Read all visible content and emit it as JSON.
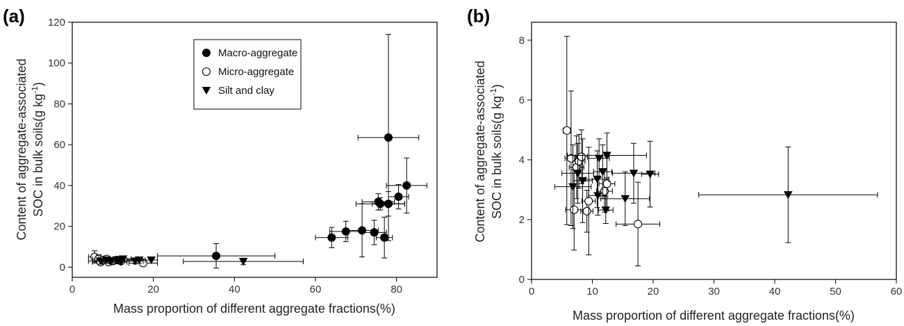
{
  "chart_data": [
    {
      "panel": "(a)",
      "type": "scatter",
      "xlabel": "Mass proportion of different aggregate fractions(%)",
      "ylabel_line1": "Content of aggregate-associated",
      "ylabel_line2_prefix": "SOC in bulk soils(g kg",
      "ylabel_sup": "-1",
      "ylabel_suffix": ")",
      "xlim": [
        0,
        90
      ],
      "ylim": [
        -5,
        120
      ],
      "xticks": [
        0,
        20,
        40,
        60,
        80
      ],
      "yticks": [
        0,
        20,
        40,
        60,
        80,
        100,
        120
      ],
      "legend_position": "top-center",
      "series": [
        {
          "name": "Macro-aggregate",
          "marker": "filled-circle",
          "points": [
            {
              "x": 35.5,
              "y": 5.5,
              "xerr": 14.5,
              "yerr": 6
            },
            {
              "x": 64,
              "y": 14.5,
              "xerr": 4,
              "yerr": 5
            },
            {
              "x": 67.5,
              "y": 17.5,
              "xerr": 4,
              "yerr": 5
            },
            {
              "x": 71.5,
              "y": 18,
              "xerr": 4,
              "yerr": 13
            },
            {
              "x": 74.5,
              "y": 17,
              "xerr": 3,
              "yerr": 6
            },
            {
              "x": 75.5,
              "y": 32,
              "xerr": 4,
              "yerr": 4
            },
            {
              "x": 76,
              "y": 31,
              "xerr": 6,
              "yerr": 3
            },
            {
              "x": 77,
              "y": 14.5,
              "xerr": 2,
              "yerr": 10
            },
            {
              "x": 78,
              "y": 63.5,
              "xerr": 7.5,
              "yerr": 50.5
            },
            {
              "x": 78,
              "y": 31,
              "xerr": 4,
              "yerr": 6
            },
            {
              "x": 80.5,
              "y": 34.5,
              "xerr": 2.5,
              "yerr": 6
            },
            {
              "x": 82.5,
              "y": 40,
              "xerr": 5,
              "yerr": 13.5
            }
          ]
        },
        {
          "name": "Micro-aggregate",
          "marker": "open-circle",
          "points": [
            {
              "x": 5.5,
              "y": 5,
              "xerr": 1.5,
              "yerr": 3
            },
            {
              "x": 6.5,
              "y": 4,
              "xerr": 1.5,
              "yerr": 2
            },
            {
              "x": 7,
              "y": 2.5,
              "xerr": 2,
              "yerr": 1.5
            },
            {
              "x": 7.5,
              "y": 3.5,
              "xerr": 1.5,
              "yerr": 1.5
            },
            {
              "x": 8.5,
              "y": 4,
              "xerr": 2,
              "yerr": 1.5
            },
            {
              "x": 9,
              "y": 2.5,
              "xerr": 1.5,
              "yerr": 1.5
            },
            {
              "x": 10,
              "y": 3,
              "xerr": 2,
              "yerr": 1.5
            },
            {
              "x": 11,
              "y": 3.5,
              "xerr": 2,
              "yerr": 1.5
            },
            {
              "x": 12,
              "y": 3,
              "xerr": 2,
              "yerr": 1.5
            },
            {
              "x": 17.5,
              "y": 2,
              "xerr": 3.5,
              "yerr": 1.5
            }
          ]
        },
        {
          "name": "Silt and clay",
          "marker": "filled-triangle-down",
          "points": [
            {
              "x": 7,
              "y": 3,
              "xerr": 3,
              "yerr": 1.5
            },
            {
              "x": 8.5,
              "y": 3.5,
              "xerr": 2.5,
              "yerr": 1.5
            },
            {
              "x": 9.5,
              "y": 3,
              "xerr": 2,
              "yerr": 1.5
            },
            {
              "x": 11,
              "y": 3.5,
              "xerr": 2,
              "yerr": 1.5
            },
            {
              "x": 12,
              "y": 2.5,
              "xerr": 1.5,
              "yerr": 1
            },
            {
              "x": 12.5,
              "y": 4,
              "xerr": 2,
              "yerr": 1.5
            },
            {
              "x": 15.5,
              "y": 3,
              "xerr": 2,
              "yerr": 1.5
            },
            {
              "x": 16.5,
              "y": 3.5,
              "xerr": 3,
              "yerr": 1.5
            },
            {
              "x": 19.5,
              "y": 3.5,
              "xerr": 1.5,
              "yerr": 1.5
            },
            {
              "x": 42.2,
              "y": 2.8,
              "xerr": 14.8,
              "yerr": 1.6
            }
          ]
        }
      ]
    },
    {
      "panel": "(b)",
      "type": "scatter",
      "xlabel": "Mass proportion of different aggregate fractions(%)",
      "ylabel_line1": "Content of aggregate-associated",
      "ylabel_line2_prefix": "SOC in bulk soils(g kg",
      "ylabel_sup": "-1",
      "ylabel_suffix": ")",
      "xlim": [
        0,
        60
      ],
      "ylim": [
        0,
        8.6
      ],
      "xticks": [
        0,
        10,
        20,
        30,
        40,
        50,
        60
      ],
      "yticks": [
        0,
        2,
        4,
        6,
        8
      ],
      "series": [
        {
          "name": "Macro-aggregate",
          "marker": "filled-circle",
          "points": []
        },
        {
          "name": "Micro-aggregate",
          "marker": "open-circle",
          "points": [
            {
              "x": 5.8,
              "y": 4.98,
              "xerr": 0.6,
              "yerr": 3.15
            },
            {
              "x": 6.5,
              "y": 4.05,
              "xerr": 1.0,
              "yerr": 2.25
            },
            {
              "x": 7.0,
              "y": 2.33,
              "xerr": 1.4,
              "yerr": 1.35
            },
            {
              "x": 7.4,
              "y": 3.75,
              "xerr": 1.2,
              "yerr": 1.05
            },
            {
              "x": 7.8,
              "y": 3.95,
              "xerr": 1.0,
              "yerr": 0.9
            },
            {
              "x": 8.2,
              "y": 4.1,
              "xerr": 1.0,
              "yerr": 0.9
            },
            {
              "x": 9.1,
              "y": 2.28,
              "xerr": 1.0,
              "yerr": 0.7
            },
            {
              "x": 9.4,
              "y": 2.62,
              "xerr": 1.1,
              "yerr": 1.8
            },
            {
              "x": 12.0,
              "y": 2.95,
              "xerr": 1.3,
              "yerr": 0.7
            },
            {
              "x": 12.4,
              "y": 3.2,
              "xerr": 1.3,
              "yerr": 0.9
            },
            {
              "x": 17.5,
              "y": 1.85,
              "xerr": 3.6,
              "yerr": 1.4
            }
          ]
        },
        {
          "name": "Silt and clay",
          "marker": "filled-triangle-down",
          "points": [
            {
              "x": 6.8,
              "y": 3.1,
              "xerr": 3.0,
              "yerr": 1.4
            },
            {
              "x": 7.6,
              "y": 3.55,
              "xerr": 2.6,
              "yerr": 1.0
            },
            {
              "x": 8.4,
              "y": 3.3,
              "xerr": 1.6,
              "yerr": 1.4
            },
            {
              "x": 10.8,
              "y": 3.35,
              "xerr": 1.9,
              "yerr": 0.95
            },
            {
              "x": 10.9,
              "y": 2.8,
              "xerr": 1.5,
              "yerr": 0.65
            },
            {
              "x": 11.1,
              "y": 4.05,
              "xerr": 1.7,
              "yerr": 0.65
            },
            {
              "x": 11.7,
              "y": 3.6,
              "xerr": 1.5,
              "yerr": 0.9
            },
            {
              "x": 12.2,
              "y": 2.32,
              "xerr": 1.2,
              "yerr": 0.45
            },
            {
              "x": 12.4,
              "y": 4.15,
              "xerr": 6.5,
              "yerr": 0.75
            },
            {
              "x": 15.4,
              "y": 2.7,
              "xerr": 4.0,
              "yerr": 0.9
            },
            {
              "x": 16.8,
              "y": 3.55,
              "xerr": 3.5,
              "yerr": 1.0
            },
            {
              "x": 19.5,
              "y": 3.52,
              "xerr": 1.4,
              "yerr": 1.1
            },
            {
              "x": 42.2,
              "y": 2.83,
              "xerr": 14.7,
              "yerr": 1.6
            }
          ]
        }
      ]
    }
  ]
}
